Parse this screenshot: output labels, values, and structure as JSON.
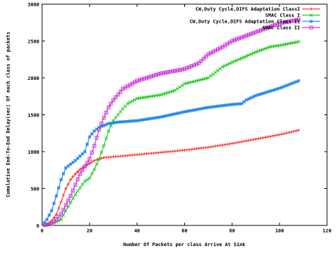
{
  "chart_data": {
    "type": "line",
    "title": "",
    "xlabel": "Number Of Packets per class Arrive At Sink",
    "ylabel": "Cumulative End-To-End Delay(sec) Of each class of packets",
    "xlim": [
      0,
      120
    ],
    "ylim": [
      0,
      3000
    ],
    "x_ticks": [
      "0",
      "20",
      "40",
      "60",
      "80",
      "100",
      "120"
    ],
    "y_ticks": [
      "0",
      "500",
      "1000",
      "1500",
      "2000",
      "2500",
      "3000"
    ],
    "grid": false,
    "legend_position": "top-right",
    "series": [
      {
        "name": "CW,Duty Cycle,DIFS Adaptation ClassI",
        "color": "#ff3333",
        "marker": "plus",
        "points": [
          [
            0,
            0
          ],
          [
            2,
            20
          ],
          [
            4,
            60
          ],
          [
            6,
            150
          ],
          [
            8,
            320
          ],
          [
            10,
            500
          ],
          [
            12,
            620
          ],
          [
            14,
            700
          ],
          [
            16,
            760
          ],
          [
            18,
            800
          ],
          [
            20,
            840
          ],
          [
            22,
            880
          ],
          [
            24,
            900
          ],
          [
            26,
            920
          ],
          [
            30,
            930
          ],
          [
            40,
            960
          ],
          [
            50,
            990
          ],
          [
            60,
            1020
          ],
          [
            70,
            1060
          ],
          [
            80,
            1110
          ],
          [
            90,
            1170
          ],
          [
            100,
            1230
          ],
          [
            108,
            1290
          ]
        ]
      },
      {
        "name": "SMAC Class I",
        "color": "#22cc22",
        "marker": "cross",
        "points": [
          [
            0,
            0
          ],
          [
            4,
            20
          ],
          [
            8,
            80
          ],
          [
            10,
            200
          ],
          [
            14,
            420
          ],
          [
            18,
            600
          ],
          [
            20,
            640
          ],
          [
            22,
            760
          ],
          [
            24,
            900
          ],
          [
            26,
            1080
          ],
          [
            28,
            1280
          ],
          [
            30,
            1420
          ],
          [
            32,
            1500
          ],
          [
            34,
            1580
          ],
          [
            36,
            1650
          ],
          [
            40,
            1720
          ],
          [
            50,
            1770
          ],
          [
            56,
            1830
          ],
          [
            60,
            1920
          ],
          [
            70,
            2000
          ],
          [
            76,
            2150
          ],
          [
            80,
            2210
          ],
          [
            90,
            2350
          ],
          [
            96,
            2420
          ],
          [
            100,
            2440
          ],
          [
            108,
            2490
          ]
        ]
      },
      {
        "name": "CW,Duty Cycle,DIFS Adaptation Class II",
        "color": "#2288ee",
        "marker": "star",
        "points": [
          [
            0,
            0
          ],
          [
            2,
            80
          ],
          [
            4,
            200
          ],
          [
            6,
            400
          ],
          [
            8,
            620
          ],
          [
            10,
            780
          ],
          [
            14,
            880
          ],
          [
            18,
            1000
          ],
          [
            20,
            1200
          ],
          [
            22,
            1280
          ],
          [
            24,
            1330
          ],
          [
            28,
            1380
          ],
          [
            32,
            1400
          ],
          [
            40,
            1420
          ],
          [
            50,
            1470
          ],
          [
            60,
            1540
          ],
          [
            70,
            1600
          ],
          [
            80,
            1640
          ],
          [
            84,
            1650
          ],
          [
            86,
            1700
          ],
          [
            90,
            1760
          ],
          [
            100,
            1860
          ],
          [
            108,
            1960
          ]
        ]
      },
      {
        "name": "SMAC Class II",
        "color": "#cc33dd",
        "marker": "square",
        "points": [
          [
            0,
            0
          ],
          [
            4,
            20
          ],
          [
            8,
            150
          ],
          [
            12,
            400
          ],
          [
            16,
            700
          ],
          [
            20,
            900
          ],
          [
            22,
            1080
          ],
          [
            24,
            1300
          ],
          [
            26,
            1460
          ],
          [
            28,
            1600
          ],
          [
            30,
            1700
          ],
          [
            34,
            1850
          ],
          [
            40,
            1960
          ],
          [
            50,
            2060
          ],
          [
            60,
            2120
          ],
          [
            66,
            2200
          ],
          [
            70,
            2320
          ],
          [
            76,
            2420
          ],
          [
            80,
            2500
          ],
          [
            90,
            2620
          ],
          [
            100,
            2740
          ],
          [
            108,
            2790
          ]
        ]
      }
    ]
  }
}
